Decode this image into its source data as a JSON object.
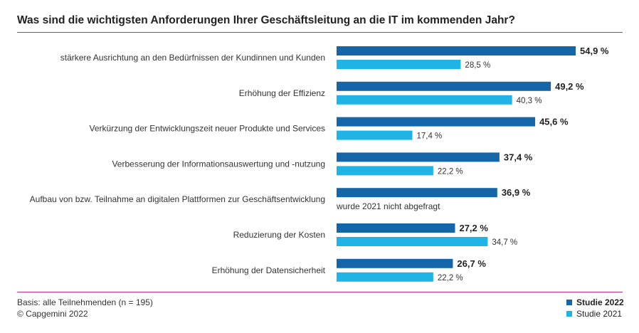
{
  "title": "Was sind die wichtigsten Anforderungen Ihrer Geschäftsleitung an die IT im kommenden Jahr?",
  "footer": {
    "basis": "Basis: alle Teilnehmenden (n = 195)",
    "copyright": "© Capgemini 2022"
  },
  "colors": {
    "series_2022": "#1566a8",
    "series_2021": "#1fb3e6",
    "rule": "#b5338a"
  },
  "chart_data": {
    "type": "bar",
    "orientation": "horizontal",
    "categories": [
      "stärkere Ausrichtung an den Bedürfnissen der Kundinnen und Kunden",
      "Erhöhung der Effizienz",
      "Verkürzung der Entwicklungszeit neuer Produkte und Services",
      "Verbesserung der Informationsauswertung und -nutzung",
      "Aufbau von bzw. Teilnahme an digitalen Plattformen zur Geschäftsentwicklung",
      "Reduzierung der Kosten",
      "Erhöhung der Datensicherheit"
    ],
    "series": [
      {
        "name": "Studie 2022",
        "values": [
          54.9,
          49.2,
          45.6,
          37.4,
          36.9,
          27.2,
          26.7
        ],
        "labels": [
          "54,9 %",
          "49,2 %",
          "45,6 %",
          "37,4 %",
          "36,9 %",
          "27,2 %",
          "26,7 %"
        ]
      },
      {
        "name": "Studie 2021",
        "values": [
          28.5,
          40.3,
          17.4,
          22.2,
          null,
          34.7,
          22.2
        ],
        "labels": [
          "28,5 %",
          "40,3 %",
          "17,4 %",
          "22,2 %",
          "wurde 2021 nicht abgefragt",
          "34,7 %",
          "22,2 %"
        ]
      }
    ],
    "xlim": [
      0,
      54.9
    ],
    "grid": false,
    "legend": "bottom-right"
  }
}
